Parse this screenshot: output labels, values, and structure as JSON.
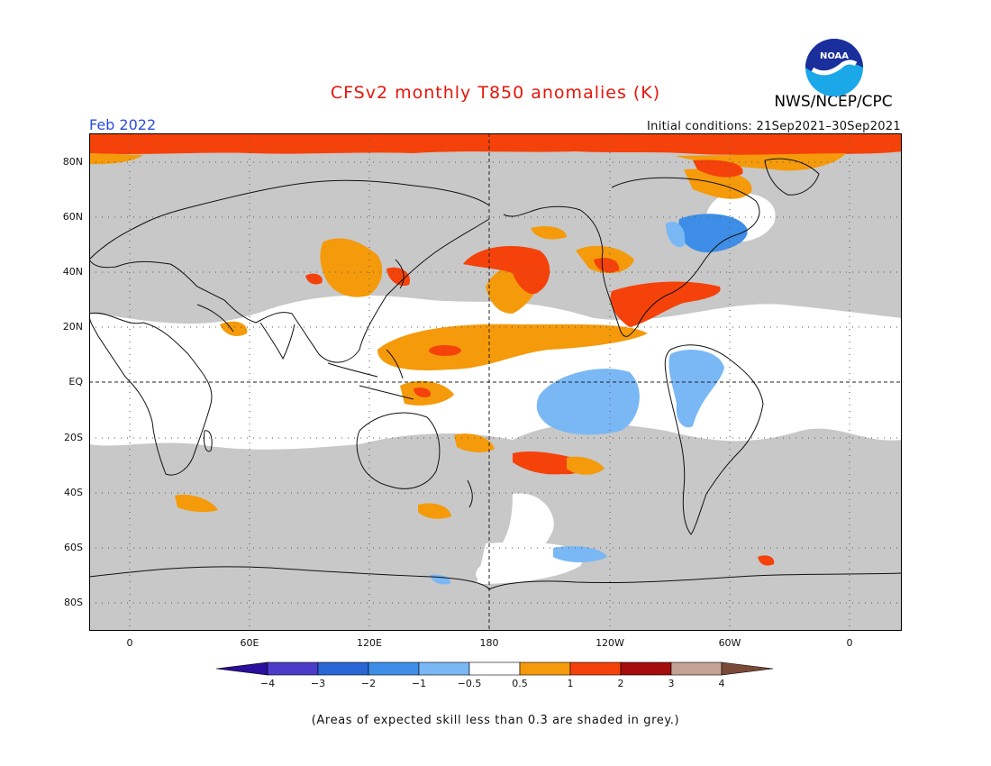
{
  "title": "CFSv2 monthly T850 anomalies (K)",
  "agency": "NWS/NCEP/CPC",
  "logo_text": "NOAA",
  "target_month": "Feb 2022",
  "initial_conditions": "Initial conditions: 21Sep2021–30Sep2021",
  "footnote": "(Areas of expected skill less than 0.3 are shaded in grey.)",
  "latitude_labels": [
    "80N",
    "60N",
    "40N",
    "20N",
    "EQ",
    "20S",
    "40S",
    "60S",
    "80S"
  ],
  "longitude_labels": [
    "0",
    "60E",
    "120E",
    "180",
    "120W",
    "60W",
    "0"
  ],
  "colorbar": {
    "labels": [
      "−4",
      "−3",
      "−2",
      "−1",
      "−0.5",
      "0.5",
      "1",
      "2",
      "3",
      "4"
    ],
    "colors": [
      "#2a0e9c",
      "#4a3cc8",
      "#2a66d6",
      "#3e8ee8",
      "#7ab8f5",
      "#ffffff",
      "#f59a0a",
      "#f5420a",
      "#a50c0c",
      "#c4a394",
      "#7a4a38"
    ]
  },
  "palette": {
    "low_skill_grey": "#c8c8c8",
    "title_red": "#e8150a",
    "month_blue": "#2a4ee0"
  }
}
